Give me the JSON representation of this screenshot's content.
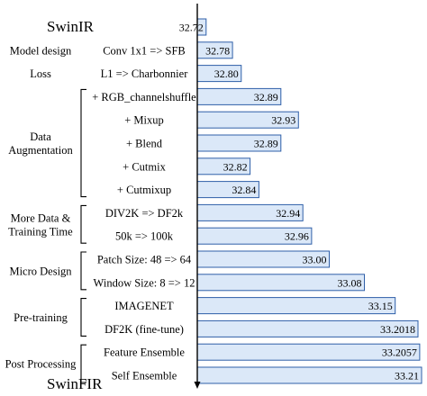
{
  "chart_data": {
    "type": "bar",
    "orientation": "horizontal",
    "baseline_label": "SwinIR",
    "final_label": "SwinFIR",
    "groups": [
      {
        "name": "Model design",
        "items": [
          "Conv 1x1 => SFB"
        ]
      },
      {
        "name": "Loss",
        "items": [
          "L1 => Charbonnier"
        ]
      },
      {
        "name": "Data\nAugmentation",
        "items": [
          "+ RGB_channelshuffle",
          "+ Mixup",
          "+ Blend",
          "+ Cutmix",
          "+ Cutmixup"
        ]
      },
      {
        "name": "More Data &\nTraining Time",
        "items": [
          "DIV2K => DF2k",
          "50k => 100k"
        ]
      },
      {
        "name": "Micro Design",
        "items": [
          "Patch Size: 48 => 64",
          "Window Size: 8 => 12"
        ]
      },
      {
        "name": "Pre-training",
        "items": [
          "IMAGENET",
          "DF2K (fine-tune)"
        ]
      },
      {
        "name": "Post Processing",
        "items": [
          "Feature Ensemble",
          "Self Ensemble"
        ]
      }
    ],
    "categories": [
      "SwinIR",
      "Conv 1x1 => SFB",
      "L1 => Charbonnier",
      "+ RGB_channelshuffle",
      "+ Mixup",
      "+ Blend",
      "+ Cutmix",
      "+ Cutmixup",
      "DIV2K => DF2k",
      "50k => 100k",
      "Patch Size: 48 => 64",
      "Window Size: 8 => 12",
      "IMAGENET",
      "DF2K (fine-tune)",
      "Feature Ensemble",
      "Self Ensemble"
    ],
    "values": [
      32.72,
      32.78,
      32.8,
      32.89,
      32.93,
      32.89,
      32.82,
      32.84,
      32.94,
      32.96,
      33.0,
      33.08,
      33.15,
      33.2018,
      33.2057,
      33.21
    ],
    "value_labels": [
      "32.72",
      "32.78",
      "32.80",
      "32.89",
      "32.93",
      "32.89",
      "32.82",
      "32.84",
      "32.94",
      "32.96",
      "33.00",
      "33.08",
      "33.15",
      "33.2018",
      "33.2057",
      "33.21"
    ],
    "xlim": [
      32.7,
      33.21
    ],
    "colors": {
      "bar_fill": "#dbe8f8",
      "bar_stroke": "#2f5fa8",
      "axis": "#000000",
      "text": "#000000"
    },
    "grid": false,
    "legend": "none"
  }
}
